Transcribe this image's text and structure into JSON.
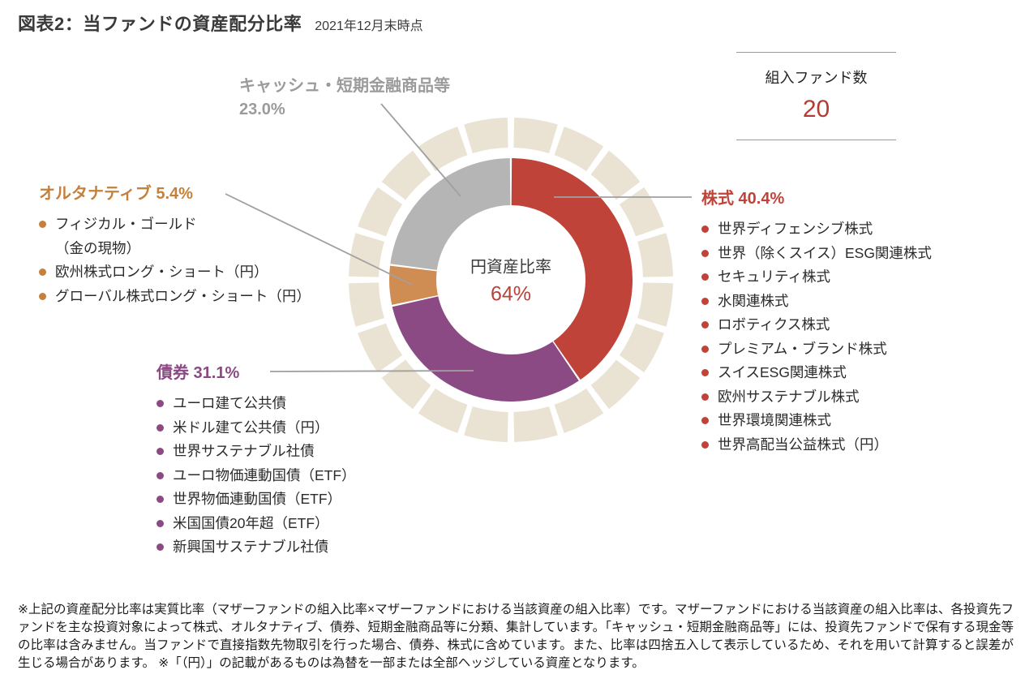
{
  "header": {
    "title": "図表2：当ファンドの資産配分比率",
    "date": "2021年12月末時点"
  },
  "fund_count": {
    "label": "組入ファンド数",
    "value": "20"
  },
  "center": {
    "label": "円資産比率",
    "value": "64%"
  },
  "chart_data": {
    "type": "pie",
    "title": "当ファンドの資産配分比率（2021年12月末時点）",
    "series": [
      {
        "name": "株式",
        "value": 40.4,
        "color": "#bf4338"
      },
      {
        "name": "債券",
        "value": 31.1,
        "color": "#8c4a84"
      },
      {
        "name": "オルタナティブ",
        "value": 5.4,
        "color": "#d08d53"
      },
      {
        "name": "キャッシュ・短期金融商品等",
        "value": 23.0,
        "color": "#b5b5b6"
      }
    ],
    "center_label": "円資産比率 64%",
    "outer_ring": {
      "segments": 20,
      "color": "#eae3d3"
    },
    "legend_position": "callout-labels",
    "grid": false
  },
  "categories": {
    "cash": {
      "label": "キャッシュ・短期金融商品等",
      "pct": "23.0%"
    },
    "alt": {
      "header": "オルタナティブ 5.4%",
      "items": [
        {
          "text": "フィジカル・ゴールド",
          "sub": "（金の現物）"
        },
        {
          "text": "欧州株式ロング・ショート（円）"
        },
        {
          "text": "グローバル株式ロング・ショート（円）"
        }
      ]
    },
    "bonds": {
      "header": "債券 31.1%",
      "items": [
        {
          "text": "ユーロ建て公共債"
        },
        {
          "text": "米ドル建て公共債（円）"
        },
        {
          "text": "世界サステナブル社債"
        },
        {
          "text": "ユーロ物価連動国債（ETF）"
        },
        {
          "text": "世界物価連動国債（ETF）"
        },
        {
          "text": "米国国債20年超（ETF）"
        },
        {
          "text": "新興国サステナブル社債"
        }
      ]
    },
    "stocks": {
      "header": "株式 40.4%",
      "items": [
        {
          "text": "世界ディフェンシブ株式"
        },
        {
          "text": "世界（除くスイス）ESG関連株式"
        },
        {
          "text": "セキュリティ株式"
        },
        {
          "text": "水関連株式"
        },
        {
          "text": "ロボティクス株式"
        },
        {
          "text": "プレミアム・ブランド株式"
        },
        {
          "text": "スイスESG関連株式"
        },
        {
          "text": "欧州サステナブル株式"
        },
        {
          "text": "世界環境関連株式"
        },
        {
          "text": "世界高配当公益株式（円）"
        }
      ]
    }
  },
  "footnote": "※上記の資産配分比率は実質比率（マザーファンドの組入比率×マザーファンドにおける当該資産の組入比率）です。マザーファンドにおける当該資産の組入比率は、各投資先ファンドを主な投資対象によって株式、オルタナティブ、債券、短期金融商品等に分類、集計しています。「キャッシュ・短期金融商品等」には、投資先ファンドで保有する現金等の比率は含みません。当ファンドで直接指数先物取引を行った場合、債券、株式に含めています。また、比率は四捨五入して表示しているため、それを用いて計算すると誤差が生じる場合があります。 ※「（円）」の記載があるものは為替を一部または全部ヘッジしている資産となります。"
}
